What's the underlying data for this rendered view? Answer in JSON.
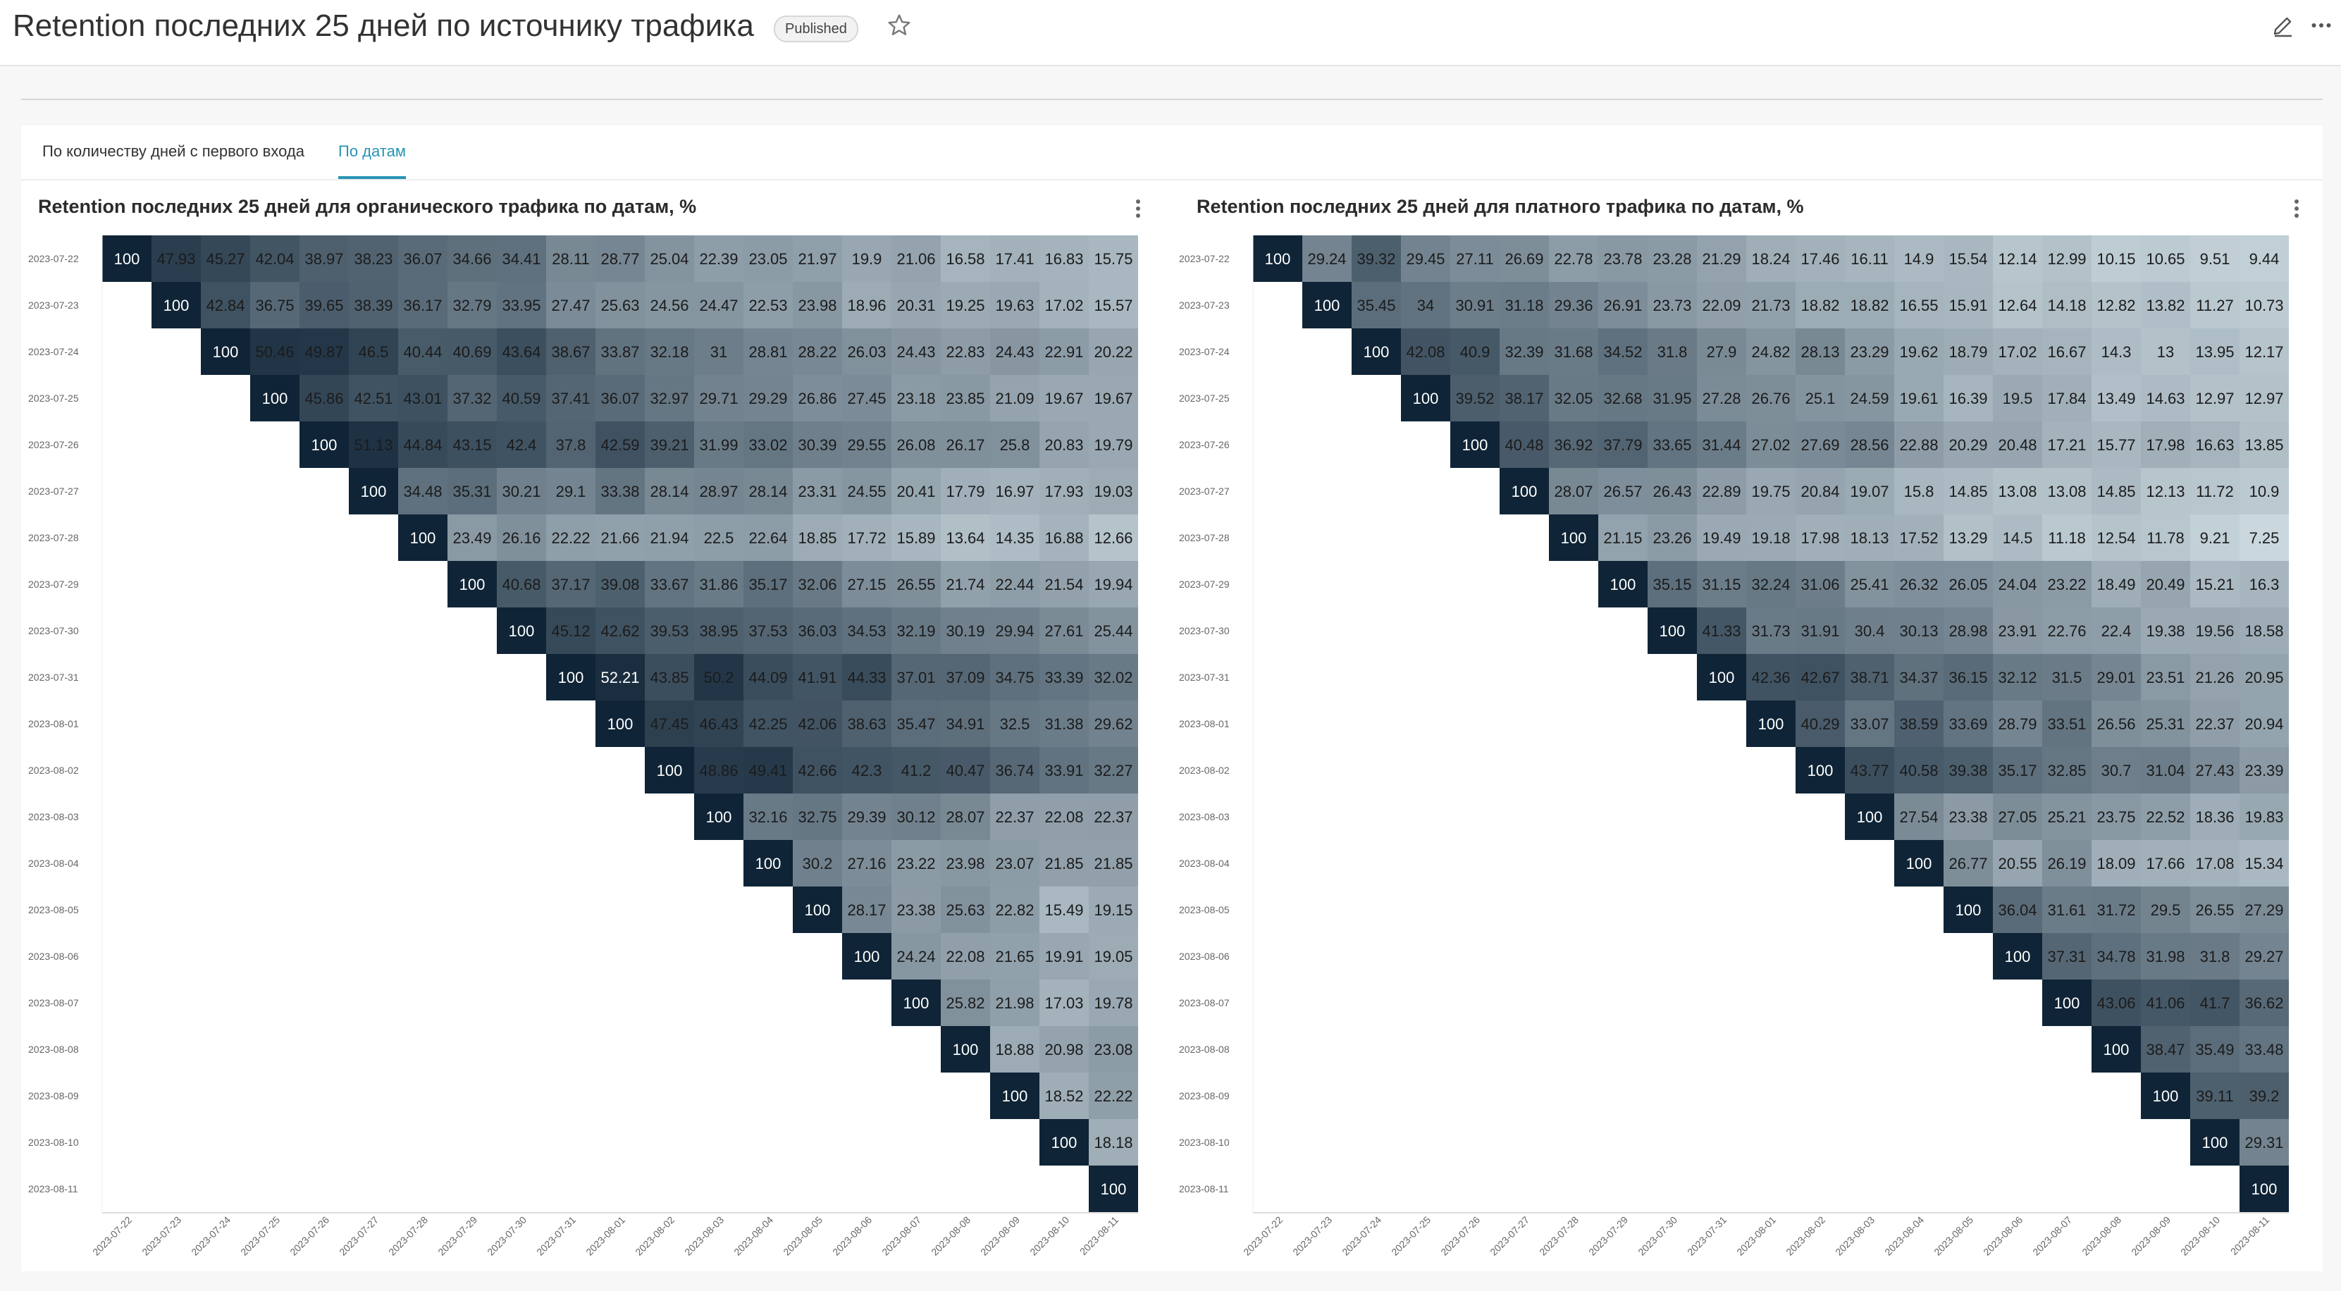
{
  "page": {
    "title": "Retention последних 25 дней по источнику трафика",
    "status_badge": "Published",
    "icons": [
      "star-icon",
      "edit-icon",
      "more-icon"
    ]
  },
  "tabs": [
    {
      "label": "По количеству дней с первого входа",
      "active": false
    },
    {
      "label": "По датам",
      "active": true
    }
  ],
  "colors": {
    "accent": "#2893b3",
    "high": "#0f2436",
    "low": "#e6f2f7"
  },
  "chart_data": [
    {
      "type": "heatmap",
      "title": "Retention последних 25 дней для органического трафика по датам, %",
      "x": [
        "2023-07-22",
        "2023-07-23",
        "2023-07-24",
        "2023-07-25",
        "2023-07-26",
        "2023-07-27",
        "2023-07-28",
        "2023-07-29",
        "2023-07-30",
        "2023-07-31",
        "2023-08-01",
        "2023-08-02",
        "2023-08-03",
        "2023-08-04",
        "2023-08-05",
        "2023-08-06",
        "2023-08-07",
        "2023-08-08",
        "2023-08-09",
        "2023-08-10",
        "2023-08-11"
      ],
      "y": [
        "2023-07-22",
        "2023-07-23",
        "2023-07-24",
        "2023-07-25",
        "2023-07-26",
        "2023-07-27",
        "2023-07-28",
        "2023-07-29",
        "2023-07-30",
        "2023-07-31",
        "2023-08-01",
        "2023-08-02",
        "2023-08-03",
        "2023-08-04",
        "2023-08-05",
        "2023-08-06",
        "2023-08-07",
        "2023-08-08",
        "2023-08-09",
        "2023-08-10",
        "2023-08-11"
      ],
      "values": [
        [
          100,
          47.93,
          45.27,
          42.04,
          38.97,
          38.23,
          36.07,
          34.66,
          34.41,
          28.11,
          28.77,
          25.04,
          22.39,
          23.05,
          21.97,
          19.9,
          21.06,
          16.58,
          17.41,
          16.83,
          15.75
        ],
        [
          100,
          42.84,
          36.75,
          39.65,
          38.39,
          36.17,
          32.79,
          33.95,
          27.47,
          25.63,
          24.56,
          24.47,
          22.53,
          23.98,
          18.96,
          20.31,
          19.25,
          19.63,
          17.02,
          15.57
        ],
        [
          100,
          50.46,
          49.87,
          46.5,
          40.44,
          40.69,
          43.64,
          38.67,
          33.87,
          32.18,
          31,
          28.81,
          28.22,
          26.03,
          24.43,
          22.83,
          24.43,
          22.91,
          20.22
        ],
        [
          100,
          45.86,
          42.51,
          43.01,
          37.32,
          40.59,
          37.41,
          36.07,
          32.97,
          29.71,
          29.29,
          26.86,
          27.45,
          23.18,
          23.85,
          21.09,
          19.67,
          19.67
        ],
        [
          100,
          51.13,
          44.84,
          43.15,
          42.4,
          37.8,
          42.59,
          39.21,
          31.99,
          33.02,
          30.39,
          29.55,
          26.08,
          26.17,
          25.8,
          20.83,
          19.79
        ],
        [
          100,
          34.48,
          35.31,
          30.21,
          29.1,
          33.38,
          28.14,
          28.97,
          28.14,
          23.31,
          24.55,
          20.41,
          17.79,
          16.97,
          17.93,
          19.03
        ],
        [
          100,
          23.49,
          26.16,
          22.22,
          21.66,
          21.94,
          22.5,
          22.64,
          18.85,
          17.72,
          15.89,
          13.64,
          14.35,
          16.88,
          12.66
        ],
        [
          100,
          40.68,
          37.17,
          39.08,
          33.67,
          31.86,
          35.17,
          32.06,
          27.15,
          26.55,
          21.74,
          22.44,
          21.54,
          19.94
        ],
        [
          100,
          45.12,
          42.62,
          39.53,
          38.95,
          37.53,
          36.03,
          34.53,
          32.19,
          30.19,
          29.94,
          27.61,
          25.44
        ],
        [
          100,
          52.21,
          43.85,
          50.2,
          44.09,
          41.91,
          44.33,
          37.01,
          37.09,
          34.75,
          33.39,
          32.02
        ],
        [
          100,
          47.45,
          46.43,
          42.25,
          42.06,
          38.63,
          35.47,
          34.91,
          32.5,
          31.38,
          29.62
        ],
        [
          100,
          48.86,
          49.41,
          42.66,
          42.3,
          41.2,
          40.47,
          36.74,
          33.91,
          32.27
        ],
        [
          100,
          32.16,
          32.75,
          29.39,
          30.12,
          28.07,
          22.37,
          22.08,
          22.37
        ],
        [
          100,
          30.2,
          27.16,
          23.22,
          23.98,
          23.07,
          21.85,
          21.85
        ],
        [
          100,
          28.17,
          23.38,
          25.63,
          22.82,
          15.49,
          19.15
        ],
        [
          100,
          24.24,
          22.08,
          21.65,
          19.91,
          19.05
        ],
        [
          100,
          25.82,
          21.98,
          17.03,
          19.78
        ],
        [
          100,
          18.88,
          20.98,
          23.08
        ],
        [
          100,
          18.52,
          22.22
        ],
        [
          100,
          18.18
        ],
        [
          100
        ]
      ]
    },
    {
      "type": "heatmap",
      "title": "Retention последних 25 дней для платного трафика по датам, %",
      "x": [
        "2023-07-22",
        "2023-07-23",
        "2023-07-24",
        "2023-07-25",
        "2023-07-26",
        "2023-07-27",
        "2023-07-28",
        "2023-07-29",
        "2023-07-30",
        "2023-07-31",
        "2023-08-01",
        "2023-08-02",
        "2023-08-03",
        "2023-08-04",
        "2023-08-05",
        "2023-08-06",
        "2023-08-07",
        "2023-08-08",
        "2023-08-09",
        "2023-08-10",
        "2023-08-11"
      ],
      "y": [
        "2023-07-22",
        "2023-07-23",
        "2023-07-24",
        "2023-07-25",
        "2023-07-26",
        "2023-07-27",
        "2023-07-28",
        "2023-07-29",
        "2023-07-30",
        "2023-07-31",
        "2023-08-01",
        "2023-08-02",
        "2023-08-03",
        "2023-08-04",
        "2023-08-05",
        "2023-08-06",
        "2023-08-07",
        "2023-08-08",
        "2023-08-09",
        "2023-08-10",
        "2023-08-11"
      ],
      "values": [
        [
          100,
          29.24,
          39.32,
          29.45,
          27.11,
          26.69,
          22.78,
          23.78,
          23.28,
          21.29,
          18.24,
          17.46,
          16.11,
          14.9,
          15.54,
          12.14,
          12.99,
          10.15,
          10.65,
          9.51,
          9.44
        ],
        [
          100,
          35.45,
          34,
          30.91,
          31.18,
          29.36,
          26.91,
          23.73,
          22.09,
          21.73,
          18.82,
          18.82,
          16.55,
          15.91,
          12.64,
          14.18,
          12.82,
          13.82,
          11.27,
          10.73
        ],
        [
          100,
          42.08,
          40.9,
          32.39,
          31.68,
          34.52,
          31.8,
          27.9,
          24.82,
          28.13,
          23.29,
          19.62,
          18.79,
          17.02,
          16.67,
          14.3,
          13,
          13.95,
          12.17
        ],
        [
          100,
          39.52,
          38.17,
          32.05,
          32.68,
          31.95,
          27.28,
          26.76,
          25.1,
          24.59,
          19.61,
          16.39,
          19.5,
          17.84,
          13.49,
          14.63,
          12.97,
          12.97
        ],
        [
          100,
          40.48,
          36.92,
          37.79,
          33.65,
          31.44,
          27.02,
          27.69,
          28.56,
          22.88,
          20.29,
          20.48,
          17.21,
          15.77,
          17.98,
          16.63,
          13.85
        ],
        [
          100,
          28.07,
          26.57,
          26.43,
          22.89,
          19.75,
          20.84,
          19.07,
          15.8,
          14.85,
          13.08,
          13.08,
          14.85,
          12.13,
          11.72,
          10.9
        ],
        [
          100,
          21.15,
          23.26,
          19.49,
          19.18,
          17.98,
          18.13,
          17.52,
          13.29,
          14.5,
          11.18,
          12.54,
          11.78,
          9.21,
          7.25
        ],
        [
          100,
          35.15,
          31.15,
          32.24,
          31.06,
          25.41,
          26.32,
          26.05,
          24.04,
          23.22,
          18.49,
          20.49,
          15.21,
          16.3
        ],
        [
          100,
          41.33,
          31.73,
          31.91,
          30.4,
          30.13,
          28.98,
          23.91,
          22.76,
          22.4,
          19.38,
          19.56,
          18.58
        ],
        [
          100,
          42.36,
          42.67,
          38.71,
          34.37,
          36.15,
          32.12,
          31.5,
          29.01,
          23.51,
          21.26,
          20.95
        ],
        [
          100,
          40.29,
          33.07,
          38.59,
          33.69,
          28.79,
          33.51,
          26.56,
          25.31,
          22.37,
          20.94
        ],
        [
          100,
          43.77,
          40.58,
          39.38,
          35.17,
          32.85,
          30.7,
          31.04,
          27.43,
          23.39
        ],
        [
          100,
          27.54,
          23.38,
          27.05,
          25.21,
          23.75,
          22.52,
          18.36,
          19.83
        ],
        [
          100,
          26.77,
          20.55,
          26.19,
          18.09,
          17.66,
          17.08,
          15.34
        ],
        [
          100,
          36.04,
          31.61,
          31.72,
          29.5,
          26.55,
          27.29
        ],
        [
          100,
          37.31,
          34.78,
          31.98,
          31.8,
          29.27
        ],
        [
          100,
          43.06,
          41.06,
          41.7,
          36.62
        ],
        [
          100,
          38.47,
          35.49,
          33.48
        ],
        [
          100,
          39.11,
          39.2
        ],
        [
          100,
          29.31
        ],
        [
          100
        ]
      ]
    }
  ]
}
